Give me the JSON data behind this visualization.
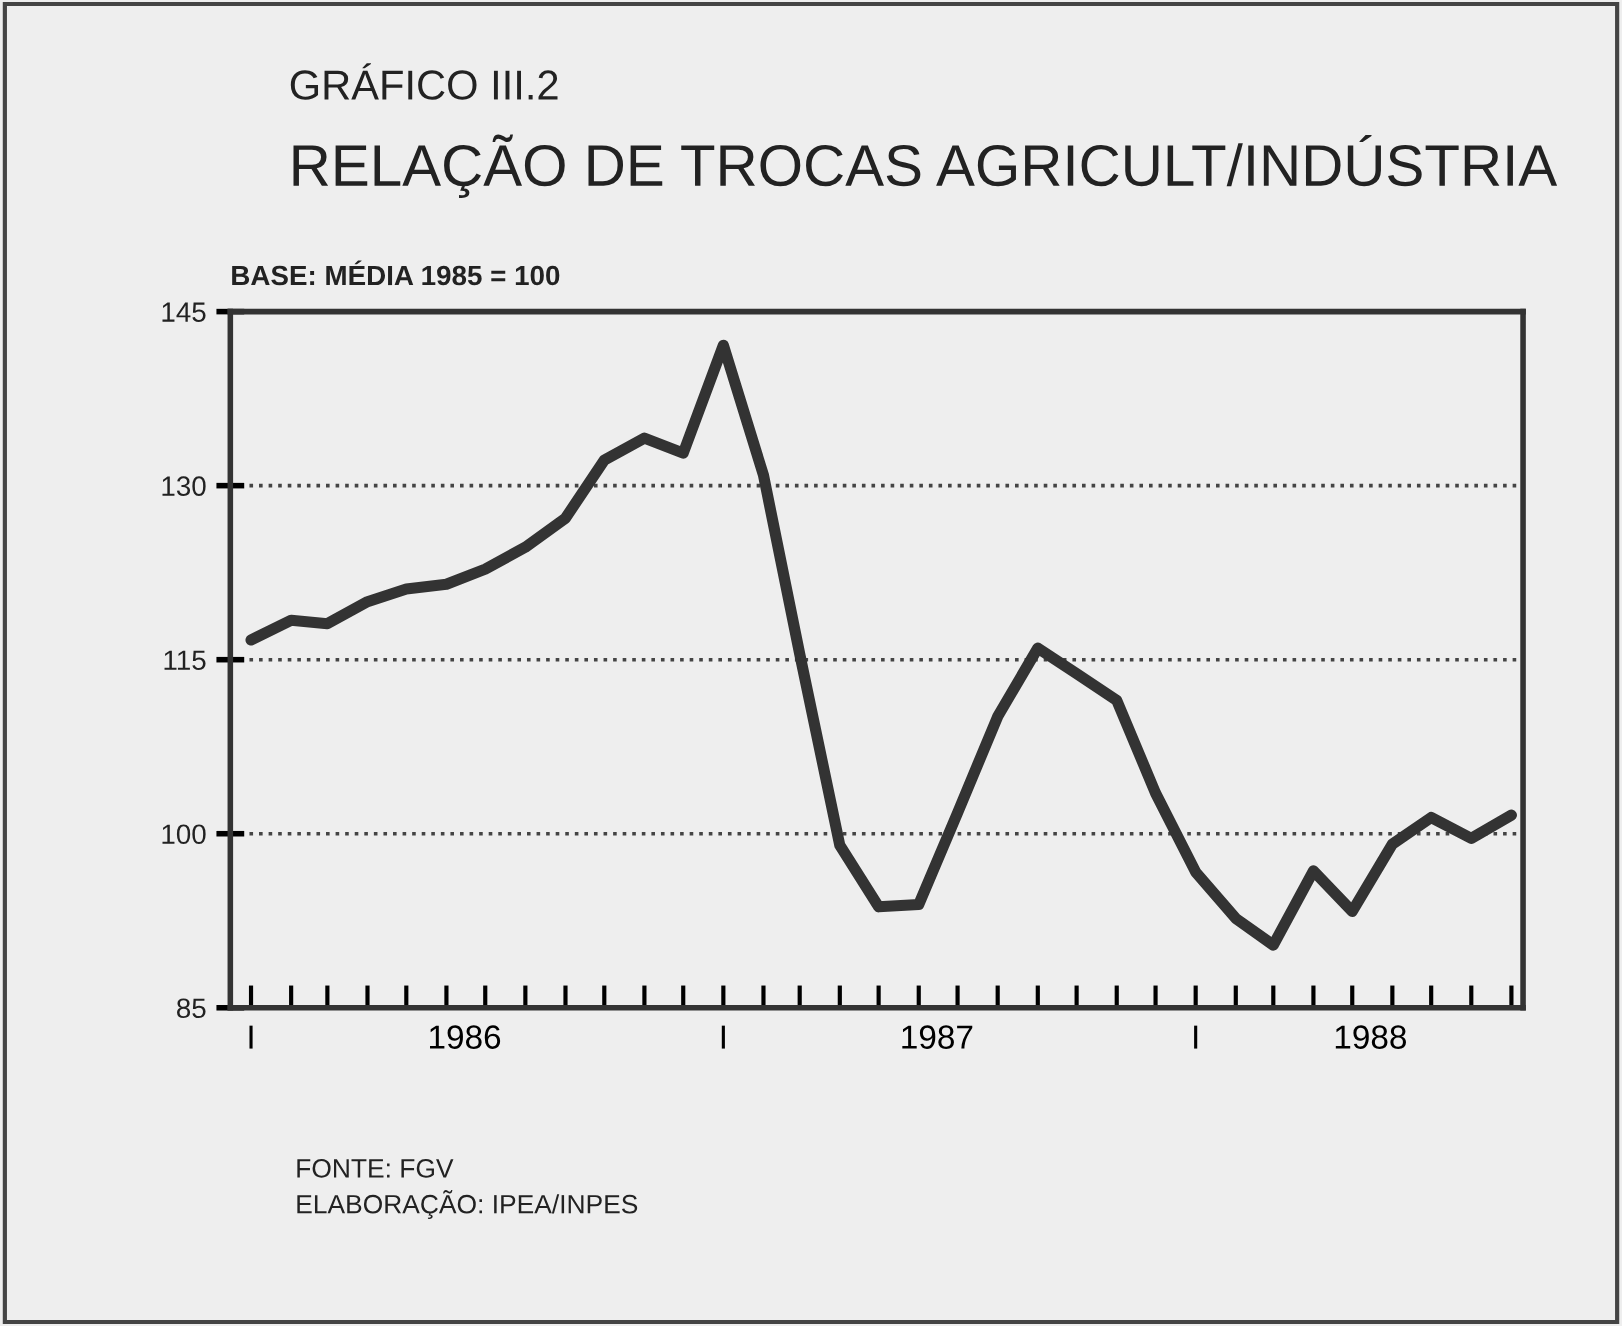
{
  "chart_data": {
    "type": "line",
    "title": "GRÁFICO III.2",
    "subtitle": "RELAÇÃO DE TROCAS AGRICULT/INDÚSTRIA",
    "ylabel": "BASE: MÉDIA 1985 = 100",
    "x": [
      "1986-01",
      "1986-02",
      "1986-03",
      "1986-04",
      "1986-05",
      "1986-06",
      "1986-07",
      "1986-08",
      "1986-09",
      "1986-10",
      "1986-11",
      "1986-12",
      "1987-01",
      "1987-02",
      "1987-03",
      "1987-04",
      "1987-05",
      "1987-06",
      "1987-07",
      "1987-08",
      "1987-09",
      "1987-10",
      "1987-11",
      "1987-12",
      "1988-01",
      "1988-02",
      "1988-03",
      "1988-04",
      "1988-05",
      "1988-06",
      "1988-07",
      "1988-08",
      "1988-09"
    ],
    "series": [
      {
        "color": "#333333",
        "values": [
          116.7,
          118.4,
          118.1,
          120.0,
          121.1,
          121.5,
          122.8,
          124.7,
          127.2,
          132.2,
          134.1,
          132.8,
          142.1,
          130.9,
          115.5,
          99.0,
          93.7,
          93.9,
          101.8,
          110.1,
          116.0,
          113.8,
          111.5,
          103.5,
          96.7,
          92.7,
          90.4,
          96.8,
          93.3,
          99.1,
          101.4,
          99.6,
          101.6
        ]
      }
    ],
    "xlim": [
      "1985-12-16",
      "1988-09-10"
    ],
    "ylim": [
      85,
      145
    ],
    "yticks": [
      85,
      100,
      115,
      130,
      145
    ],
    "xticks": [
      {
        "value": "1986-01",
        "label": "I"
      },
      {
        "value": "1986-02",
        "label": null
      },
      {
        "value": "1986-03",
        "label": null
      },
      {
        "value": "1986-04",
        "label": null
      },
      {
        "value": "1986-05",
        "label": null
      },
      {
        "value": "1986-06",
        "label": null
      },
      {
        "value": "1986-07",
        "label": null
      },
      {
        "value": "1986-08",
        "label": null
      },
      {
        "value": "1986-09",
        "label": null
      },
      {
        "value": "1986-10",
        "label": null
      },
      {
        "value": "1986-11",
        "label": null
      },
      {
        "value": "1986-12",
        "label": null
      },
      {
        "value": "1987-01",
        "label": "I"
      },
      {
        "value": "1987-02",
        "label": null
      },
      {
        "value": "1987-03",
        "label": null
      },
      {
        "value": "1987-04",
        "label": null
      },
      {
        "value": "1987-05",
        "label": null
      },
      {
        "value": "1987-06",
        "label": null
      },
      {
        "value": "1987-07",
        "label": null
      },
      {
        "value": "1987-08",
        "label": null
      },
      {
        "value": "1987-09",
        "label": null
      },
      {
        "value": "1987-10",
        "label": null
      },
      {
        "value": "1987-11",
        "label": null
      },
      {
        "value": "1987-12",
        "label": null
      },
      {
        "value": "1988-01",
        "label": "I"
      },
      {
        "value": "1988-02",
        "label": null
      },
      {
        "value": "1988-03",
        "label": null
      },
      {
        "value": "1988-04",
        "label": null
      },
      {
        "value": "1988-05",
        "label": null
      },
      {
        "value": "1988-06",
        "label": null
      },
      {
        "value": "1988-07",
        "label": null
      },
      {
        "value": "1988-08",
        "label": null
      },
      {
        "value": "1988-09",
        "label": null
      },
      {
        "value": "1986-06-15",
        "label": "1986"
      },
      {
        "value": "1987-06-15",
        "label": "1987"
      },
      {
        "value": "1988-05-15",
        "label": "1988"
      }
    ],
    "grid": "y",
    "line_style": "solid",
    "marker": "none",
    "annotations": [
      "FONTE: FGV",
      "ELABORAÇÃO: IPEA/INPES"
    ]
  }
}
